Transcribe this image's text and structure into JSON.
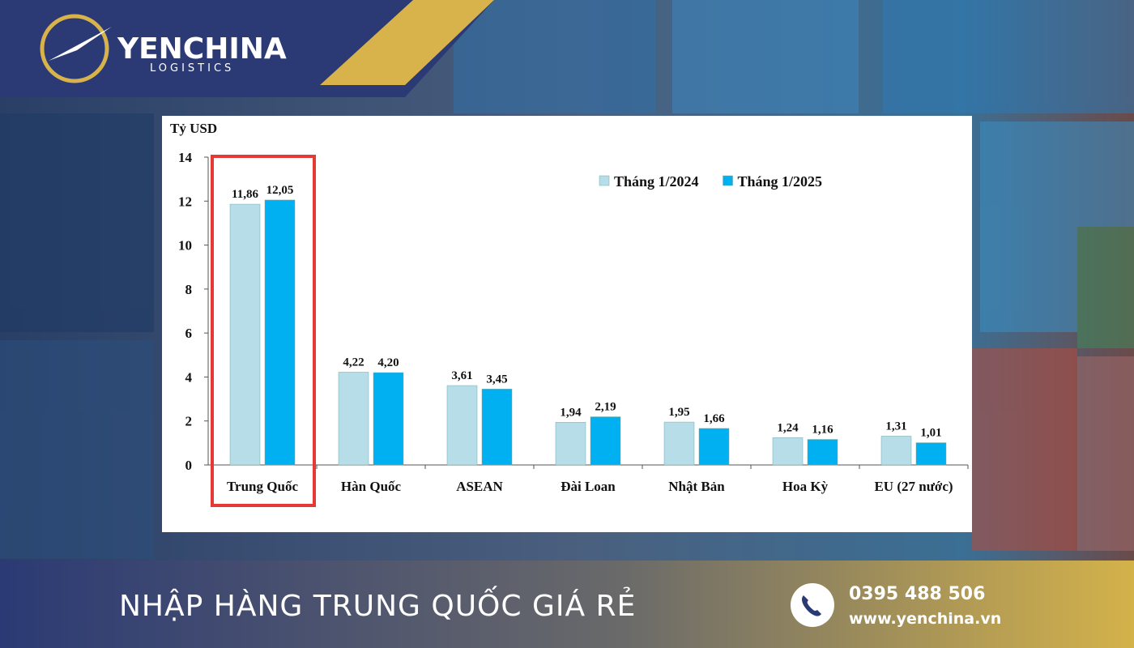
{
  "brand": {
    "name": "YENCHINA",
    "tagline": "LOGISTICS"
  },
  "chart_data": {
    "type": "bar",
    "y_label": "Tỷ USD",
    "categories": [
      "Trung Quốc",
      "Hàn Quốc",
      "ASEAN",
      "Đài Loan",
      "Nhật Bản",
      "Hoa Kỳ",
      "EU (27 nước)"
    ],
    "series": [
      {
        "name": "Tháng 1/2024",
        "color": "#b7dde8",
        "values": [
          11.86,
          4.22,
          3.61,
          1.94,
          1.95,
          1.24,
          1.31
        ],
        "value_labels": [
          "11,86",
          "4,22",
          "3,61",
          "1,94",
          "1,95",
          "1,24",
          "1,31"
        ]
      },
      {
        "name": "Tháng 1/2025",
        "color": "#00b0f0",
        "values": [
          12.05,
          4.2,
          3.45,
          2.19,
          1.66,
          1.16,
          1.01
        ],
        "value_labels": [
          "12,05",
          "4,20",
          "3,45",
          "2,19",
          "1,66",
          "1,16",
          "1,01"
        ]
      }
    ],
    "ylim": [
      0,
      14
    ],
    "yticks": [
      0,
      2,
      4,
      6,
      8,
      10,
      12,
      14
    ],
    "grid": false,
    "legend": "top-right"
  },
  "footer": {
    "headline": "NHẬP HÀNG TRUNG QUỐC GIÁ RẺ",
    "phone": "0395 488 506",
    "website": "www.yenchina.vn"
  }
}
